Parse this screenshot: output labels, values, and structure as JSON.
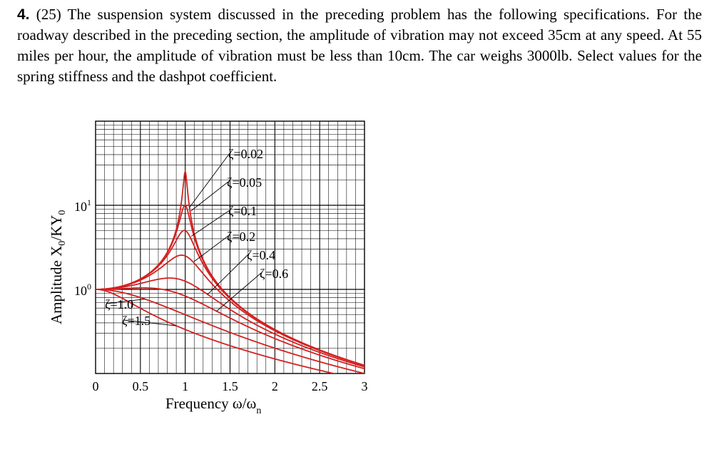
{
  "problem": {
    "number": "4.",
    "points": "(25)",
    "text": "The suspension system discussed in the preceding problem has the following specifications.  For the roadway described in the preceding section, the amplitude of vibration may not exceed 35cm at any speed.  At 55 miles per hour, the amplitude of vibration must be less than 10cm.  The car weighs 3000lb.  Select values for the spring stiffness and the dashpot coefficient."
  },
  "chart_data": {
    "type": "line",
    "xlabel": "Frequency ω/ω",
    "xlabel_sub": "n",
    "ylabel": "Amplitude X",
    "ylabel_sub": "0",
    "ylabel_rest": "/KY",
    "ylabel_sub2": "0",
    "x_ticks": [
      "0",
      "0.5",
      "1",
      "1.5",
      "2",
      "2.5",
      "3"
    ],
    "y_ticks": [
      {
        "base": "10",
        "exp": "1",
        "value": 10
      },
      {
        "base": "10",
        "exp": "0",
        "value": 1
      }
    ],
    "xlim": [
      0,
      3
    ],
    "ylim": [
      0.1,
      100
    ],
    "yscale": "log",
    "grid": true,
    "line_color": "#d42020",
    "series": [
      {
        "name": "ζ=0.02",
        "zeta": 0.02
      },
      {
        "name": "ζ=0.05",
        "zeta": 0.05
      },
      {
        "name": "ζ=0.1",
        "zeta": 0.1
      },
      {
        "name": "ζ=0.2",
        "zeta": 0.2
      },
      {
        "name": "ζ=0.4",
        "zeta": 0.4
      },
      {
        "name": "ζ=0.6",
        "zeta": 0.6
      },
      {
        "name": "ζ=1.0",
        "zeta": 1.0
      },
      {
        "name": "ζ=1.5",
        "zeta": 1.5
      }
    ]
  }
}
